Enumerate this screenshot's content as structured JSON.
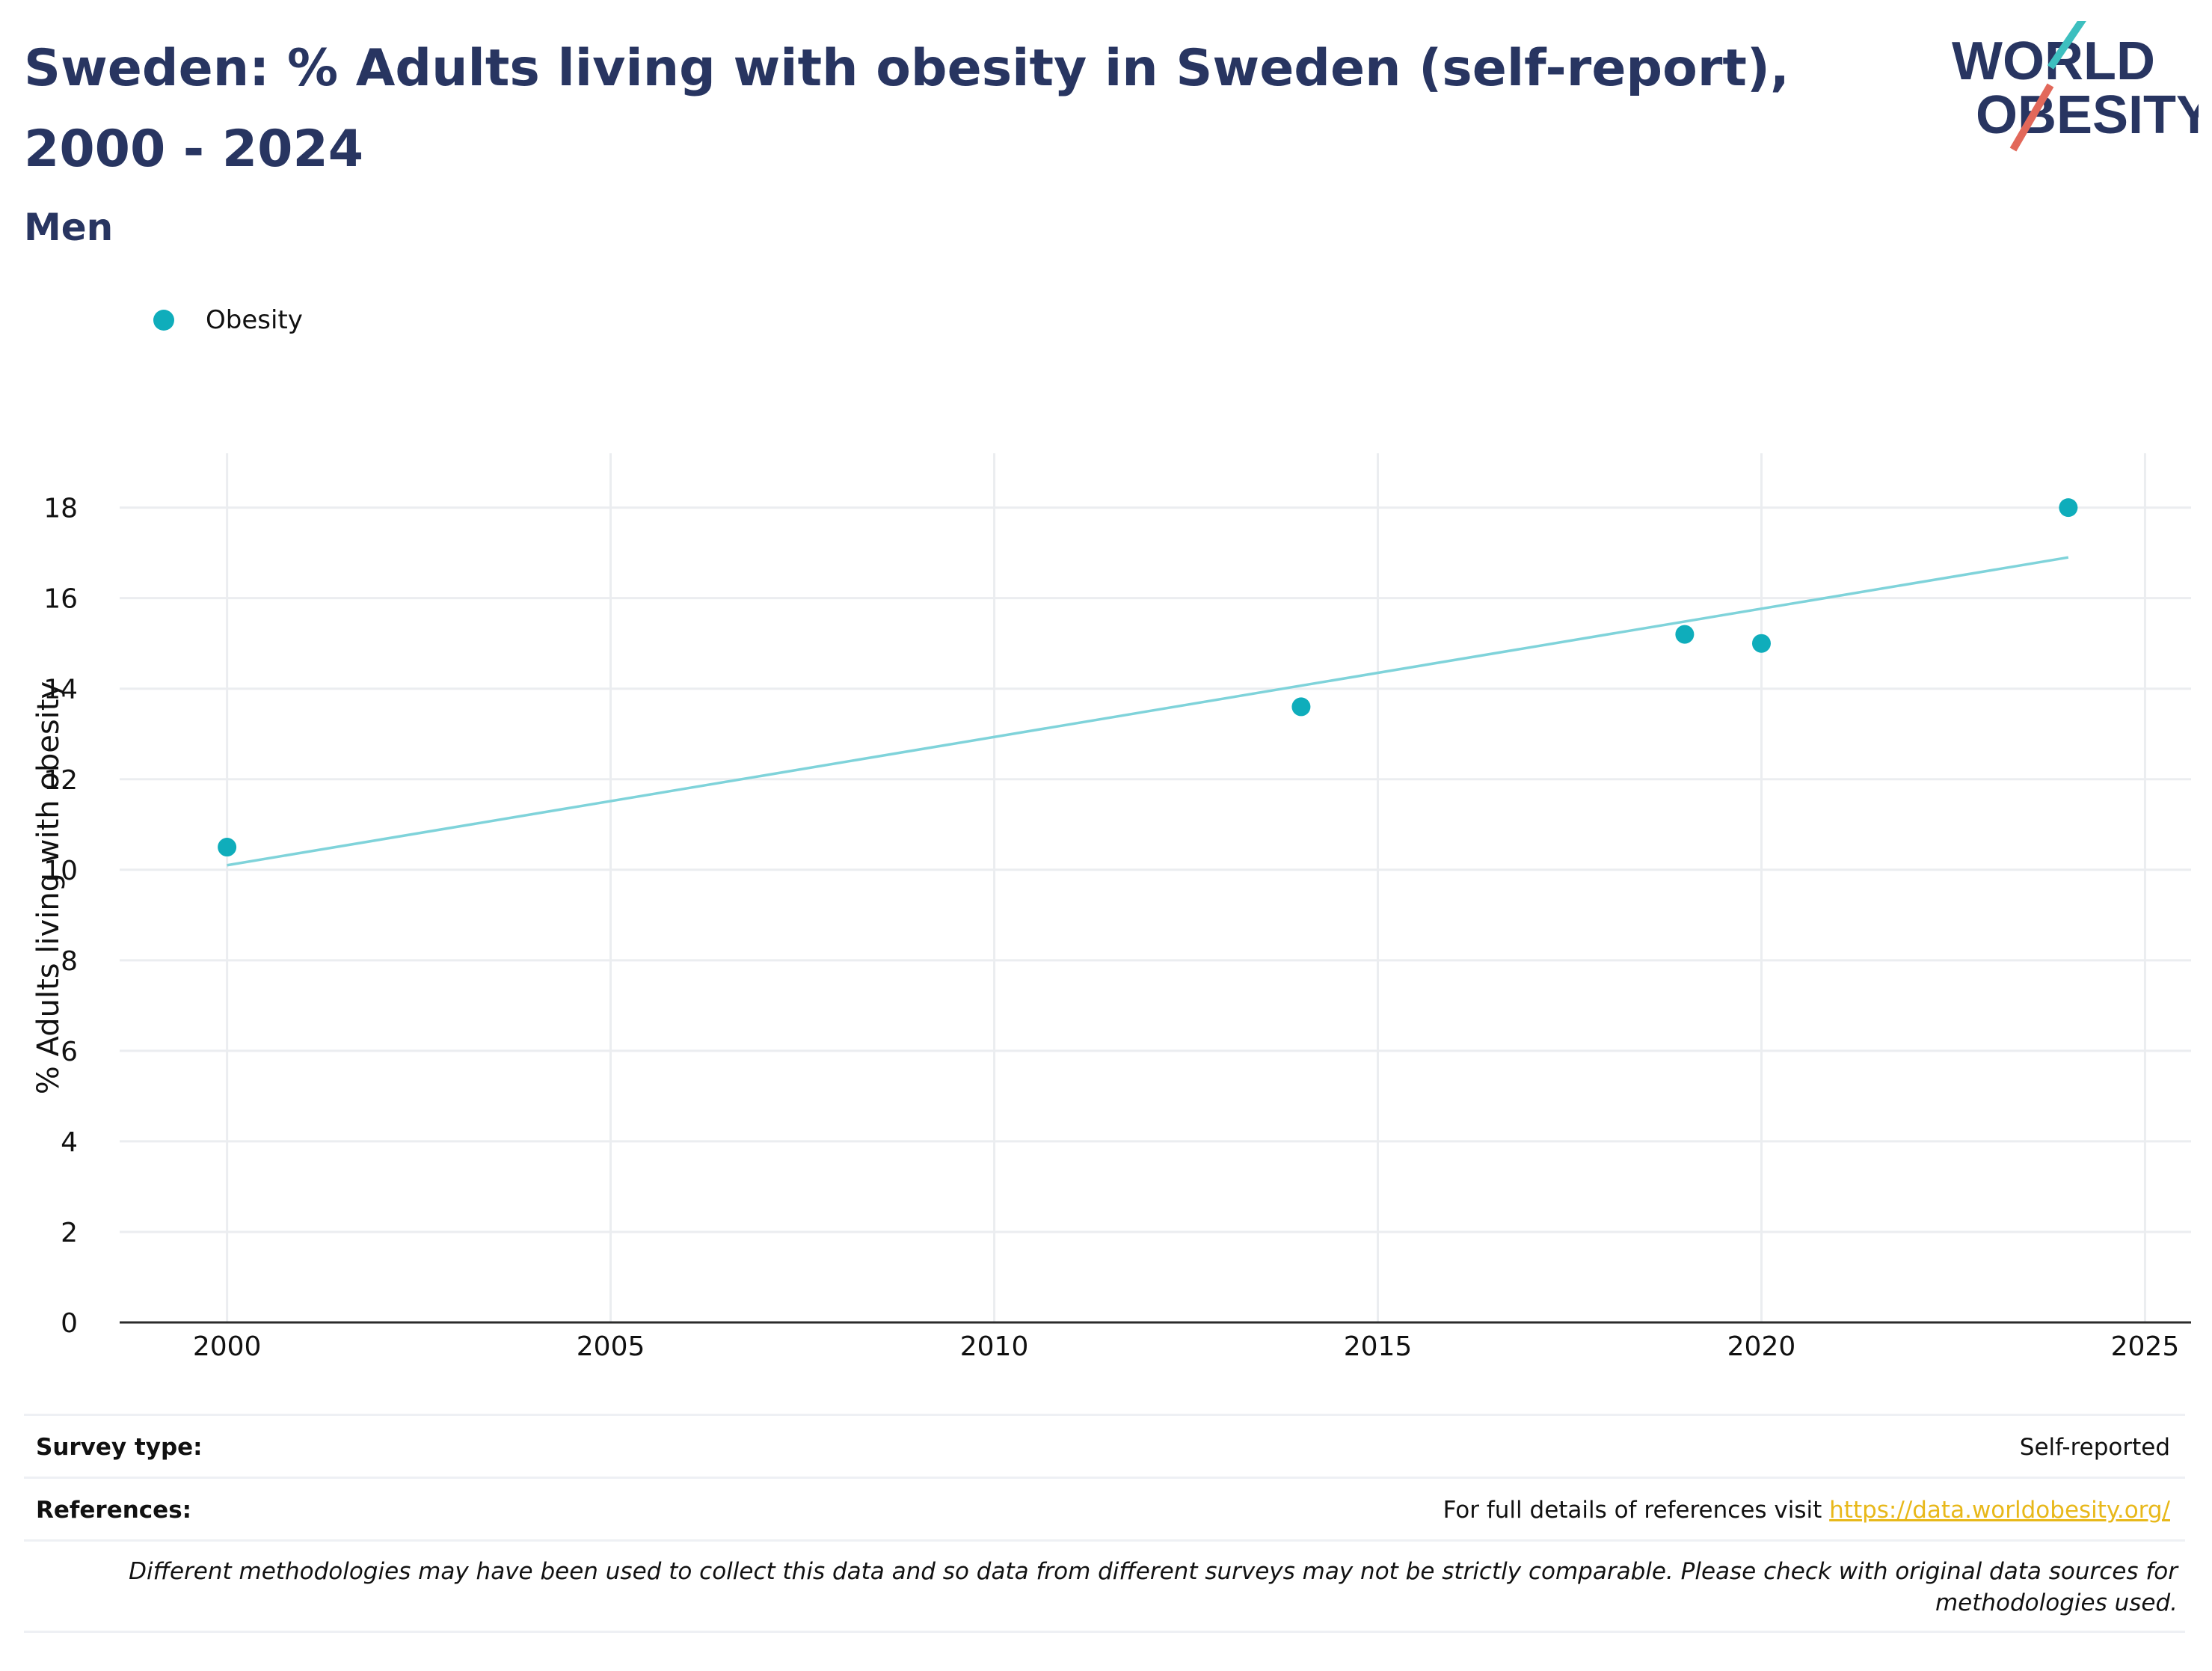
{
  "header": {
    "title": "Sweden: % Adults living with obesity in Sweden (self-report), 2000 - 2024",
    "subtitle": "Men"
  },
  "logo": {
    "line1": "WORLD",
    "line2": "OBESITY",
    "icon": "world-obesity-logo"
  },
  "legend": {
    "label": "Obesity",
    "color": "#0fadbb"
  },
  "chart_data": {
    "type": "scatter",
    "title": "Sweden: % Adults living with obesity in Sweden (self-report), 2000 - 2024",
    "subtitle": "Men",
    "xlabel": "",
    "ylabel": "% Adults living with obesity",
    "xlim": [
      1998.6,
      2025.6
    ],
    "ylim": [
      0,
      19.2
    ],
    "xticks": [
      2000,
      2005,
      2010,
      2015,
      2020,
      2025
    ],
    "yticks": [
      0,
      2,
      4,
      6,
      8,
      10,
      12,
      14,
      16,
      18
    ],
    "grid": true,
    "legend_position": "top-left",
    "series": [
      {
        "name": "Obesity",
        "color": "#0fadbb",
        "x": [
          2000,
          2014,
          2019,
          2020,
          2024
        ],
        "y": [
          10.5,
          13.6,
          15.2,
          15.0,
          18.0
        ]
      }
    ],
    "trendline": {
      "color": "#7fd3da",
      "x": [
        2000,
        2024
      ],
      "y": [
        10.1,
        16.9
      ]
    }
  },
  "info": {
    "survey_type_label": "Survey type:",
    "survey_type_value": "Self-reported",
    "references_label": "References:",
    "references_text": "For full details of references visit ",
    "references_link": "https://data.worldobesity.org/",
    "note": "Different methodologies may have been used to collect this data and so data from different surveys may not be strictly comparable. Please check with original data sources for methodologies used."
  },
  "colors": {
    "title": "#283561",
    "accent_teal": "#3dbfbf",
    "accent_red": "#e2685a",
    "link": "#e8b81a"
  }
}
